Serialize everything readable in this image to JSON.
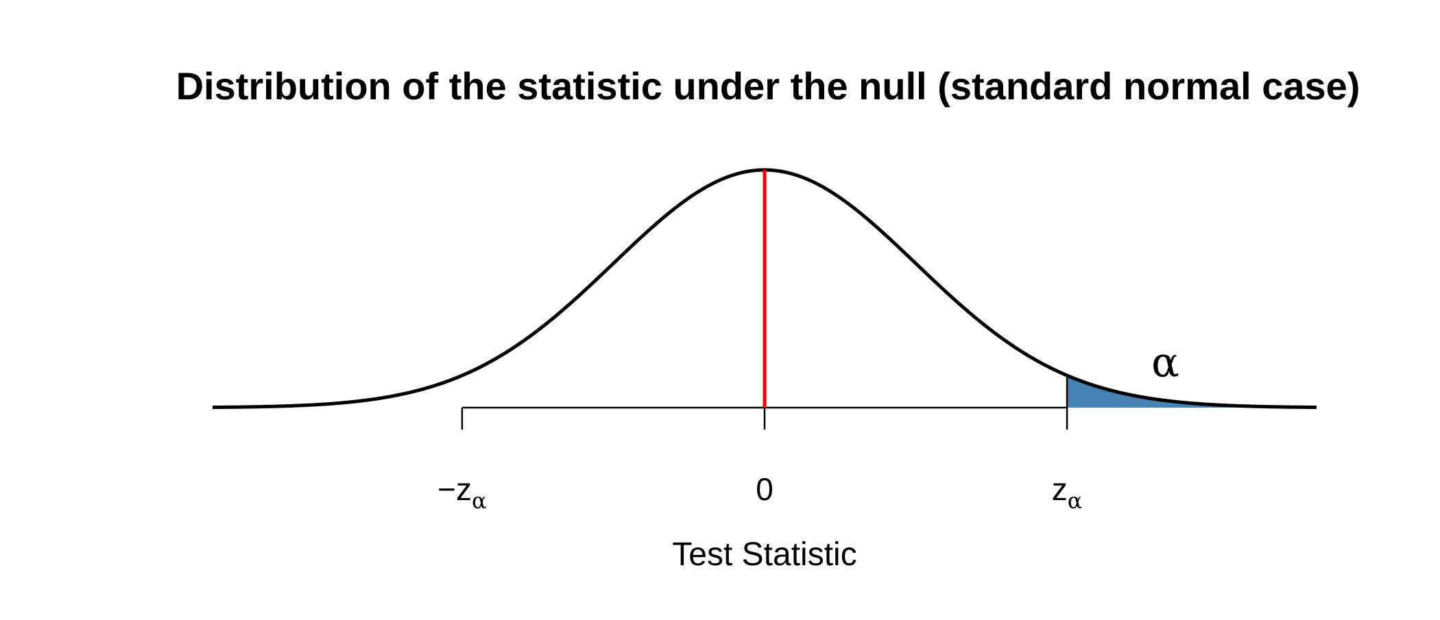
{
  "chart_data": {
    "type": "area",
    "title": "Distribution of the statistic under the null (standard normal case)",
    "xlabel": "Test Statistic",
    "ylabel": "",
    "distribution": "standard normal",
    "xlim": [
      -3.65,
      3.65
    ],
    "ylim": [
      0,
      0.399
    ],
    "ticks": [
      {
        "value": -2,
        "label_sign": "−",
        "label_main": "z",
        "label_sub": "α"
      },
      {
        "value": 0,
        "label_sign": "",
        "label_main": "0",
        "label_sub": ""
      },
      {
        "value": 2,
        "label_sign": "",
        "label_main": "z",
        "label_sub": "α"
      }
    ],
    "critical_value": 2,
    "shaded_region": {
      "from": 2,
      "to": 3.65,
      "label": "α",
      "color": "#4682B4"
    },
    "center_line": {
      "x": 0,
      "color": "#FF0000"
    },
    "curve_color": "#000000",
    "grid": false,
    "legend": "none"
  }
}
